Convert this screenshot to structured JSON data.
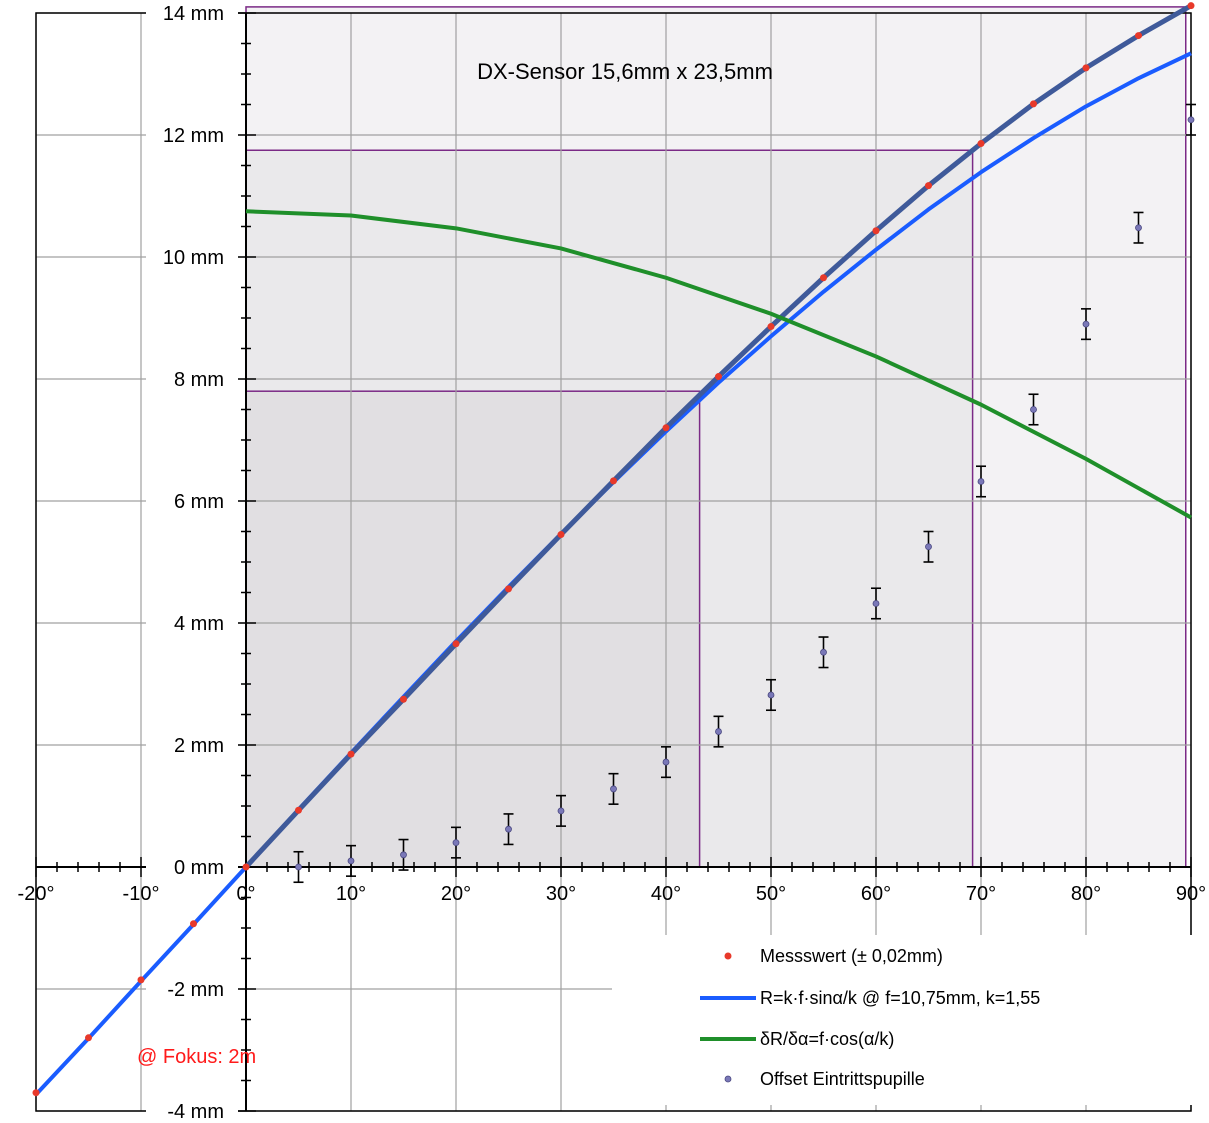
{
  "chart_data": {
    "type": "line",
    "title": "DX-Sensor 15,6mm x 23,5mm",
    "annotation": "@ Fokus: 2m",
    "xlim": [
      -20,
      90
    ],
    "ylim": [
      -4,
      14
    ],
    "x_ticks": [
      "-20°",
      "-10°",
      "0°",
      "10°",
      "20°",
      "30°",
      "40°",
      "50°",
      "60°",
      "70°",
      "80°",
      "90°"
    ],
    "y_ticks": [
      "-4 mm",
      "-2 mm",
      "0 mm",
      "2 mm",
      "4 mm",
      "6 mm",
      "8 mm",
      "10 mm",
      "12 mm",
      "14 mm"
    ],
    "grid": true,
    "legend_position": "bottom-right",
    "legend": [
      "Messswert (± 0,02mm)",
      "R=k·f·sinα/k @ f=10,75mm, k=1,55",
      "δR/δα=f·cos(α/k)",
      "Offset Eintrittspupille"
    ],
    "sensor_regions": [
      {
        "x_max": 43.2,
        "y_max": 7.8
      },
      {
        "x_max": 69.2,
        "y_max": 11.75
      },
      {
        "x_max": 89.5,
        "y_max": 14.1
      }
    ],
    "series": [
      {
        "name": "Messswert (± 0,02mm)",
        "kind": "scatter",
        "color": "#e8392a",
        "x": [
          -20,
          -15,
          -10,
          -5,
          0,
          5,
          10,
          15,
          20,
          25,
          30,
          35,
          40,
          45,
          50,
          55,
          60,
          65,
          70,
          75,
          80,
          85,
          90
        ],
        "y": [
          -3.7,
          -2.8,
          -1.85,
          -0.93,
          0.0,
          0.93,
          1.85,
          2.75,
          3.66,
          4.56,
          5.45,
          6.33,
          7.2,
          8.04,
          8.86,
          9.66,
          10.43,
          11.17,
          11.86,
          12.51,
          13.1,
          13.63,
          14.12
        ]
      },
      {
        "name": "R=k·f·sinα/k @ f=10,75mm, k=1,55",
        "kind": "line",
        "color": "#1a5cff",
        "x": [
          -20,
          -15,
          -10,
          -5,
          0,
          5,
          10,
          15,
          20,
          25,
          30,
          35,
          40,
          45,
          50,
          55,
          60,
          65,
          70,
          75,
          80,
          85,
          90
        ],
        "y": [
          -3.73,
          -2.81,
          -1.87,
          -0.94,
          0.0,
          0.94,
          1.87,
          2.79,
          3.7,
          4.59,
          5.46,
          6.31,
          7.14,
          7.94,
          8.7,
          9.43,
          10.12,
          10.78,
          11.39,
          11.95,
          12.47,
          12.93,
          13.34
        ]
      },
      {
        "name": "δR/δα=f·cos(α/k)",
        "kind": "line",
        "color": "#1f8f2a",
        "x": [
          0,
          10,
          20,
          30,
          40,
          50,
          60,
          70,
          80,
          90
        ],
        "y": [
          10.75,
          10.68,
          10.47,
          10.14,
          9.66,
          9.07,
          8.37,
          7.58,
          6.69,
          5.73
        ]
      },
      {
        "name": "Offset Eintrittspupille",
        "kind": "errorbar",
        "color": "#7a78b8",
        "error": 0.25,
        "x": [
          5,
          10,
          15,
          20,
          25,
          30,
          35,
          40,
          45,
          50,
          55,
          60,
          65,
          70,
          75,
          80,
          85,
          90
        ],
        "y": [
          0.0,
          0.1,
          0.2,
          0.4,
          0.62,
          0.92,
          1.28,
          1.72,
          2.22,
          2.82,
          3.52,
          4.32,
          5.25,
          6.32,
          7.5,
          8.9,
          10.48,
          12.25
        ]
      }
    ]
  }
}
